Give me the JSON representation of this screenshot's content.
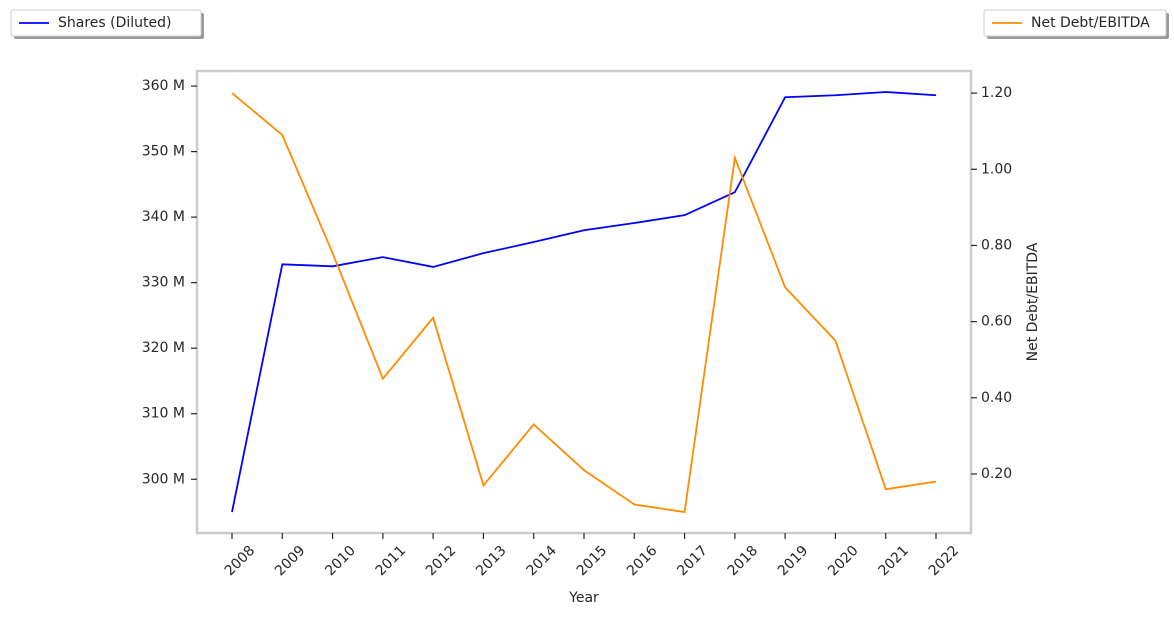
{
  "chart_data": {
    "type": "line",
    "xlabel": "Year",
    "y2label": "Net Debt/EBITDA",
    "categories": [
      "2008",
      "2009",
      "2010",
      "2011",
      "2012",
      "2013",
      "2014",
      "2015",
      "2016",
      "2017",
      "2018",
      "2019",
      "2020",
      "2021",
      "2022"
    ],
    "series": [
      {
        "name": "Shares (Diluted)",
        "color": "#0000ff",
        "axis": "y",
        "legend": "upper left",
        "values": [
          295.0,
          332.8,
          332.5,
          333.9,
          332.4,
          334.5,
          336.2,
          338.0,
          339.1,
          340.3,
          343.8,
          358.3,
          358.6,
          359.1,
          358.6
        ]
      },
      {
        "name": "Net Debt/EBITDA",
        "color": "#ff8c00",
        "axis": "y2",
        "legend": "upper right",
        "values": [
          1.2,
          1.09,
          0.78,
          0.45,
          0.61,
          0.17,
          0.33,
          0.21,
          0.12,
          0.1,
          1.03,
          0.69,
          0.55,
          0.16,
          0.18
        ]
      }
    ],
    "ylim": [
      291.8,
      362.3
    ],
    "yticks": [
      {
        "value": 300,
        "label": "300 M"
      },
      {
        "value": 310,
        "label": "310 M"
      },
      {
        "value": 320,
        "label": "320 M"
      },
      {
        "value": 330,
        "label": "330 M"
      },
      {
        "value": 340,
        "label": "340 M"
      },
      {
        "value": 350,
        "label": "350 M"
      },
      {
        "value": 360,
        "label": "360 M"
      }
    ],
    "y2lim": [
      0.045,
      1.258
    ],
    "y2ticks": [
      {
        "value": 0.2,
        "label": "0.20"
      },
      {
        "value": 0.4,
        "label": "0.40"
      },
      {
        "value": 0.6,
        "label": "0.60"
      },
      {
        "value": 0.8,
        "label": "0.80"
      },
      {
        "value": 1.0,
        "label": "1.00"
      },
      {
        "value": 1.2,
        "label": "1.20"
      }
    ]
  }
}
